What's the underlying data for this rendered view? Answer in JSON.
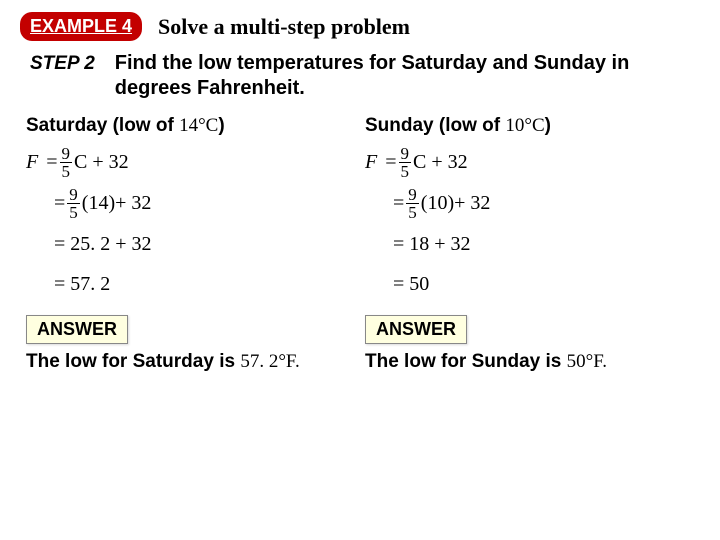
{
  "header": {
    "badge": "EXAMPLE 4",
    "title": "Solve a multi-step problem",
    "badge_bg": "#c30000",
    "badge_fg": "#ffffff"
  },
  "step": {
    "label": "STEP 2",
    "text": "Find the low temperatures for Saturday and Sunday in degrees Fahrenheit."
  },
  "left": {
    "subhead_prefix": "Saturday (low of ",
    "subhead_temp": "14°C",
    "subhead_suffix": ")",
    "eq1_F": "F",
    "eq1_eq": "=",
    "frac_num": "9",
    "frac_den": "5",
    "eq1_rest": " C + 32",
    "eq2_eq": "=",
    "eq2_rest": " (14)+ 32",
    "eq3": "= 25. 2 + 32",
    "eq4": "= 57. 2",
    "answer_label": "ANSWER",
    "answer_prefix": "The low for Saturday is ",
    "answer_val": "57. 2°F."
  },
  "right": {
    "subhead_prefix": "Sunday (low of ",
    "subhead_temp": "10°C",
    "subhead_suffix": ")",
    "eq1_F": "F",
    "eq1_eq": "=",
    "frac_num": "9",
    "frac_den": "5",
    "eq1_rest": " C + 32",
    "eq2_eq": "=",
    "eq2_rest": " (10)+ 32",
    "eq3": "= 18 + 32",
    "eq4": "= 50",
    "answer_label": "ANSWER",
    "answer_prefix": "The low for Sunday is ",
    "answer_val": "50°F."
  },
  "style": {
    "answer_bg": "#ffffe0"
  }
}
